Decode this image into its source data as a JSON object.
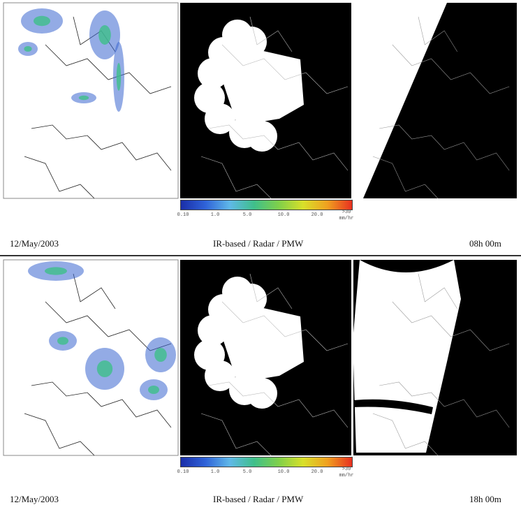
{
  "panels": [
    {
      "date": "12/May/2003",
      "title": "IR-based / Radar / PMW",
      "time": "08h 00m",
      "colorbar": {
        "ticks": [
          "0.10",
          "1.0",
          "5.0",
          "10.0",
          "20.0",
          ">30"
        ],
        "unit": "mm/hr"
      }
    },
    {
      "date": "12/May/2003",
      "title": "IR-based / Radar / PMW",
      "time": "18h 00m",
      "colorbar": {
        "ticks": [
          "0.10",
          "1.0",
          "5.0",
          "10.0",
          "20.0",
          ">30"
        ],
        "unit": "mm/hr"
      }
    }
  ]
}
